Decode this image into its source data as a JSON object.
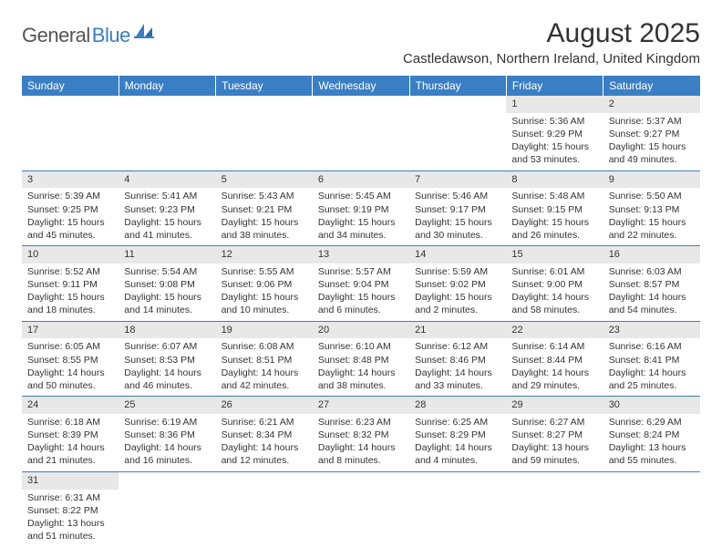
{
  "logo": {
    "part1": "General",
    "part2": "Blue"
  },
  "title": "August 2025",
  "location": "Castledawson, Northern Ireland, United Kingdom",
  "colors": {
    "header_bg": "#3a7fc4",
    "header_fg": "#ffffff",
    "daynum_bg": "#e8e8e8",
    "border": "#3a7fc4",
    "logo_blue": "#3a7fc4",
    "logo_gray": "#555555"
  },
  "weekdays": [
    "Sunday",
    "Monday",
    "Tuesday",
    "Wednesday",
    "Thursday",
    "Friday",
    "Saturday"
  ],
  "weeks": [
    [
      null,
      null,
      null,
      null,
      null,
      {
        "n": "1",
        "sr": "Sunrise: 5:36 AM",
        "ss": "Sunset: 9:29 PM",
        "d1": "Daylight: 15 hours",
        "d2": "and 53 minutes."
      },
      {
        "n": "2",
        "sr": "Sunrise: 5:37 AM",
        "ss": "Sunset: 9:27 PM",
        "d1": "Daylight: 15 hours",
        "d2": "and 49 minutes."
      }
    ],
    [
      {
        "n": "3",
        "sr": "Sunrise: 5:39 AM",
        "ss": "Sunset: 9:25 PM",
        "d1": "Daylight: 15 hours",
        "d2": "and 45 minutes."
      },
      {
        "n": "4",
        "sr": "Sunrise: 5:41 AM",
        "ss": "Sunset: 9:23 PM",
        "d1": "Daylight: 15 hours",
        "d2": "and 41 minutes."
      },
      {
        "n": "5",
        "sr": "Sunrise: 5:43 AM",
        "ss": "Sunset: 9:21 PM",
        "d1": "Daylight: 15 hours",
        "d2": "and 38 minutes."
      },
      {
        "n": "6",
        "sr": "Sunrise: 5:45 AM",
        "ss": "Sunset: 9:19 PM",
        "d1": "Daylight: 15 hours",
        "d2": "and 34 minutes."
      },
      {
        "n": "7",
        "sr": "Sunrise: 5:46 AM",
        "ss": "Sunset: 9:17 PM",
        "d1": "Daylight: 15 hours",
        "d2": "and 30 minutes."
      },
      {
        "n": "8",
        "sr": "Sunrise: 5:48 AM",
        "ss": "Sunset: 9:15 PM",
        "d1": "Daylight: 15 hours",
        "d2": "and 26 minutes."
      },
      {
        "n": "9",
        "sr": "Sunrise: 5:50 AM",
        "ss": "Sunset: 9:13 PM",
        "d1": "Daylight: 15 hours",
        "d2": "and 22 minutes."
      }
    ],
    [
      {
        "n": "10",
        "sr": "Sunrise: 5:52 AM",
        "ss": "Sunset: 9:11 PM",
        "d1": "Daylight: 15 hours",
        "d2": "and 18 minutes."
      },
      {
        "n": "11",
        "sr": "Sunrise: 5:54 AM",
        "ss": "Sunset: 9:08 PM",
        "d1": "Daylight: 15 hours",
        "d2": "and 14 minutes."
      },
      {
        "n": "12",
        "sr": "Sunrise: 5:55 AM",
        "ss": "Sunset: 9:06 PM",
        "d1": "Daylight: 15 hours",
        "d2": "and 10 minutes."
      },
      {
        "n": "13",
        "sr": "Sunrise: 5:57 AM",
        "ss": "Sunset: 9:04 PM",
        "d1": "Daylight: 15 hours",
        "d2": "and 6 minutes."
      },
      {
        "n": "14",
        "sr": "Sunrise: 5:59 AM",
        "ss": "Sunset: 9:02 PM",
        "d1": "Daylight: 15 hours",
        "d2": "and 2 minutes."
      },
      {
        "n": "15",
        "sr": "Sunrise: 6:01 AM",
        "ss": "Sunset: 9:00 PM",
        "d1": "Daylight: 14 hours",
        "d2": "and 58 minutes."
      },
      {
        "n": "16",
        "sr": "Sunrise: 6:03 AM",
        "ss": "Sunset: 8:57 PM",
        "d1": "Daylight: 14 hours",
        "d2": "and 54 minutes."
      }
    ],
    [
      {
        "n": "17",
        "sr": "Sunrise: 6:05 AM",
        "ss": "Sunset: 8:55 PM",
        "d1": "Daylight: 14 hours",
        "d2": "and 50 minutes."
      },
      {
        "n": "18",
        "sr": "Sunrise: 6:07 AM",
        "ss": "Sunset: 8:53 PM",
        "d1": "Daylight: 14 hours",
        "d2": "and 46 minutes."
      },
      {
        "n": "19",
        "sr": "Sunrise: 6:08 AM",
        "ss": "Sunset: 8:51 PM",
        "d1": "Daylight: 14 hours",
        "d2": "and 42 minutes."
      },
      {
        "n": "20",
        "sr": "Sunrise: 6:10 AM",
        "ss": "Sunset: 8:48 PM",
        "d1": "Daylight: 14 hours",
        "d2": "and 38 minutes."
      },
      {
        "n": "21",
        "sr": "Sunrise: 6:12 AM",
        "ss": "Sunset: 8:46 PM",
        "d1": "Daylight: 14 hours",
        "d2": "and 33 minutes."
      },
      {
        "n": "22",
        "sr": "Sunrise: 6:14 AM",
        "ss": "Sunset: 8:44 PM",
        "d1": "Daylight: 14 hours",
        "d2": "and 29 minutes."
      },
      {
        "n": "23",
        "sr": "Sunrise: 6:16 AM",
        "ss": "Sunset: 8:41 PM",
        "d1": "Daylight: 14 hours",
        "d2": "and 25 minutes."
      }
    ],
    [
      {
        "n": "24",
        "sr": "Sunrise: 6:18 AM",
        "ss": "Sunset: 8:39 PM",
        "d1": "Daylight: 14 hours",
        "d2": "and 21 minutes."
      },
      {
        "n": "25",
        "sr": "Sunrise: 6:19 AM",
        "ss": "Sunset: 8:36 PM",
        "d1": "Daylight: 14 hours",
        "d2": "and 16 minutes."
      },
      {
        "n": "26",
        "sr": "Sunrise: 6:21 AM",
        "ss": "Sunset: 8:34 PM",
        "d1": "Daylight: 14 hours",
        "d2": "and 12 minutes."
      },
      {
        "n": "27",
        "sr": "Sunrise: 6:23 AM",
        "ss": "Sunset: 8:32 PM",
        "d1": "Daylight: 14 hours",
        "d2": "and 8 minutes."
      },
      {
        "n": "28",
        "sr": "Sunrise: 6:25 AM",
        "ss": "Sunset: 8:29 PM",
        "d1": "Daylight: 14 hours",
        "d2": "and 4 minutes."
      },
      {
        "n": "29",
        "sr": "Sunrise: 6:27 AM",
        "ss": "Sunset: 8:27 PM",
        "d1": "Daylight: 13 hours",
        "d2": "and 59 minutes."
      },
      {
        "n": "30",
        "sr": "Sunrise: 6:29 AM",
        "ss": "Sunset: 8:24 PM",
        "d1": "Daylight: 13 hours",
        "d2": "and 55 minutes."
      }
    ],
    [
      {
        "n": "31",
        "sr": "Sunrise: 6:31 AM",
        "ss": "Sunset: 8:22 PM",
        "d1": "Daylight: 13 hours",
        "d2": "and 51 minutes."
      },
      null,
      null,
      null,
      null,
      null,
      null
    ]
  ]
}
